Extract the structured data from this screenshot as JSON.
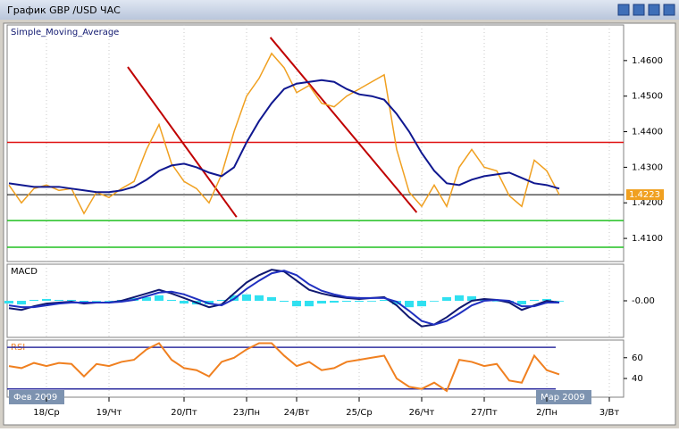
{
  "window": {
    "title": "График GBP /USD  ЧАС"
  },
  "chart_data": [
    {
      "type": "line",
      "title": "Simple_Moving_Average",
      "categories": [
        null,
        null,
        null,
        "18/Ср",
        null,
        null,
        null,
        null,
        "19/Чт",
        null,
        null,
        null,
        null,
        null,
        "20/Пт",
        null,
        null,
        null,
        null,
        "23/Пн",
        null,
        null,
        null,
        "24/Вт",
        null,
        null,
        null,
        null,
        "25/Ср",
        null,
        null,
        null,
        null,
        "26/Чт",
        null,
        null,
        null,
        null,
        "27/Пт",
        null,
        null,
        null,
        null,
        "2/Пн",
        null,
        null,
        null,
        null,
        "3/Вт",
        null
      ],
      "series": [
        {
          "color": "#f0a020",
          "values": [
            1.425,
            1.42,
            1.424,
            1.425,
            1.4235,
            1.424,
            1.417,
            1.423,
            1.4215,
            1.424,
            1.426,
            1.435,
            1.442,
            1.431,
            1.426,
            1.424,
            1.42,
            1.428,
            1.44,
            1.45,
            1.455,
            1.462,
            1.458,
            1.451,
            1.453,
            1.448,
            1.447,
            1.45,
            1.452,
            1.454,
            1.456,
            1.435,
            1.423,
            1.419,
            1.425,
            1.419,
            1.43,
            1.435,
            1.43,
            1.429,
            1.422,
            1.419,
            1.432,
            1.429,
            1.4223,
            null,
            null,
            null,
            null,
            null
          ]
        },
        {
          "color": "#101890",
          "values": [
            1.4255,
            1.425,
            1.4245,
            1.4245,
            1.4245,
            1.424,
            1.4235,
            1.423,
            1.423,
            1.4235,
            1.4245,
            1.4265,
            1.429,
            1.4305,
            1.431,
            1.43,
            1.4285,
            1.4275,
            1.43,
            1.437,
            1.443,
            1.448,
            1.452,
            1.4535,
            1.454,
            1.4545,
            1.454,
            1.452,
            1.4505,
            1.45,
            1.449,
            1.445,
            1.44,
            1.434,
            1.429,
            1.4255,
            1.425,
            1.4265,
            1.4275,
            1.428,
            1.4285,
            1.427,
            1.4255,
            1.425,
            1.424,
            null,
            null,
            null,
            null,
            null
          ]
        }
      ],
      "ylim": [
        1.4035,
        1.47
      ],
      "yticks": [
        {
          "value": 1.41,
          "label": "1.4100"
        },
        {
          "value": 1.42,
          "label": "1.4200"
        },
        {
          "value": 1.43,
          "label": "1.4300"
        },
        {
          "value": 1.44,
          "label": "1.4400"
        },
        {
          "value": 1.45,
          "label": "1.4500"
        },
        {
          "value": 1.46,
          "label": "1.4600"
        }
      ],
      "levels": [
        {
          "value": 1.437,
          "color": "#e01010"
        },
        {
          "value": 1.415,
          "color": "#20c020"
        },
        {
          "value": 1.4075,
          "color": "#20c020"
        },
        {
          "value": 1.4223,
          "color": "#000000"
        }
      ],
      "trendlines": [
        {
          "x": [
            9.5,
            18.2
          ],
          "y": [
            1.4582,
            1.416
          ],
          "color": "#c00000"
        },
        {
          "x": [
            20.9,
            32.6
          ],
          "y": [
            1.4665,
            1.4173
          ],
          "color": "#c00000"
        }
      ],
      "current_price": {
        "value": 1.4223,
        "label": "1.4223",
        "color": "#f0a020"
      }
    },
    {
      "type": "macd",
      "title": "MACD",
      "histogram": {
        "color": "#30e0f0",
        "values": [
          -0.0003,
          -0.0004,
          0.0001,
          0.0002,
          0.0001,
          0.0001,
          -0.0001,
          0.0,
          0.0,
          0.0001,
          0.0003,
          0.0004,
          0.0006,
          0.0001,
          -0.0003,
          -0.0004,
          -0.0004,
          0.0001,
          0.0006,
          0.0007,
          0.0006,
          0.0004,
          -0.0001,
          -0.0006,
          -0.0006,
          -0.0003,
          -0.0002,
          -0.0001,
          -0.0001,
          0.0,
          0.0001,
          -0.0004,
          -0.0007,
          -0.0006,
          0.0,
          0.0004,
          0.0006,
          0.0005,
          0.0002,
          0.0,
          -0.0002,
          -0.0004,
          0.0001,
          0.0002,
          0.0,
          null,
          null,
          null,
          null,
          null
        ]
      },
      "series": [
        {
          "color": "#101870",
          "values": [
            -0.0008,
            -0.001,
            -0.0006,
            -0.0003,
            -0.0002,
            -0.0001,
            -0.0003,
            -0.0002,
            -0.0002,
            0.0,
            0.0004,
            0.0008,
            0.0012,
            0.0008,
            0.0003,
            -0.0002,
            -0.0007,
            -0.0004,
            0.0008,
            0.002,
            0.0028,
            0.0034,
            0.0032,
            0.0022,
            0.0012,
            0.0008,
            0.0005,
            0.0003,
            0.0002,
            0.0003,
            0.0004,
            -0.0005,
            -0.0018,
            -0.0028,
            -0.0026,
            -0.0018,
            -0.0008,
            0.0,
            0.0002,
            0.0001,
            -0.0002,
            -0.001,
            -0.0005,
            0.0,
            -0.0002,
            null,
            null,
            null,
            null,
            null
          ]
        },
        {
          "color": "#2030c0",
          "values": [
            -0.0005,
            -0.0007,
            -0.0007,
            -0.0005,
            -0.0003,
            -0.0002,
            -0.0002,
            -0.0002,
            -0.0002,
            -0.0001,
            0.0001,
            0.0005,
            0.0009,
            0.001,
            0.0007,
            0.0002,
            -0.0003,
            -0.0005,
            0.0002,
            0.0013,
            0.0022,
            0.003,
            0.0033,
            0.0028,
            0.0018,
            0.0011,
            0.0007,
            0.0004,
            0.0003,
            0.0003,
            0.0003,
            -0.0001,
            -0.0011,
            -0.0022,
            -0.0026,
            -0.0022,
            -0.0014,
            -0.0005,
            0.0,
            0.0001,
            0.0,
            -0.0006,
            -0.0006,
            -0.0002,
            -0.0002,
            null,
            null,
            null,
            null,
            null
          ]
        }
      ],
      "ylim": [
        -0.004,
        0.004
      ],
      "yticks": [
        {
          "value": 0,
          "label": "-0.00"
        }
      ]
    },
    {
      "type": "line",
      "title": "RSI",
      "series": [
        {
          "color": "#f08020",
          "values": [
            52,
            50,
            55,
            52,
            55,
            54,
            42,
            54,
            52,
            56,
            58,
            68,
            74,
            58,
            50,
            48,
            42,
            56,
            60,
            68,
            74,
            74,
            62,
            52,
            56,
            48,
            50,
            56,
            58,
            60,
            62,
            40,
            32,
            30,
            36,
            28,
            58,
            56,
            52,
            54,
            38,
            36,
            62,
            48,
            44,
            null,
            null,
            null,
            null,
            null
          ]
        }
      ],
      "ylim": [
        22,
        77
      ],
      "yticks": [
        40,
        60
      ],
      "levels": [
        {
          "value": 70,
          "color": "#3030a0"
        },
        {
          "value": 30,
          "color": "#3030a0"
        }
      ],
      "period_labels": [
        "Фев 2009",
        "Мар 2009"
      ]
    }
  ]
}
